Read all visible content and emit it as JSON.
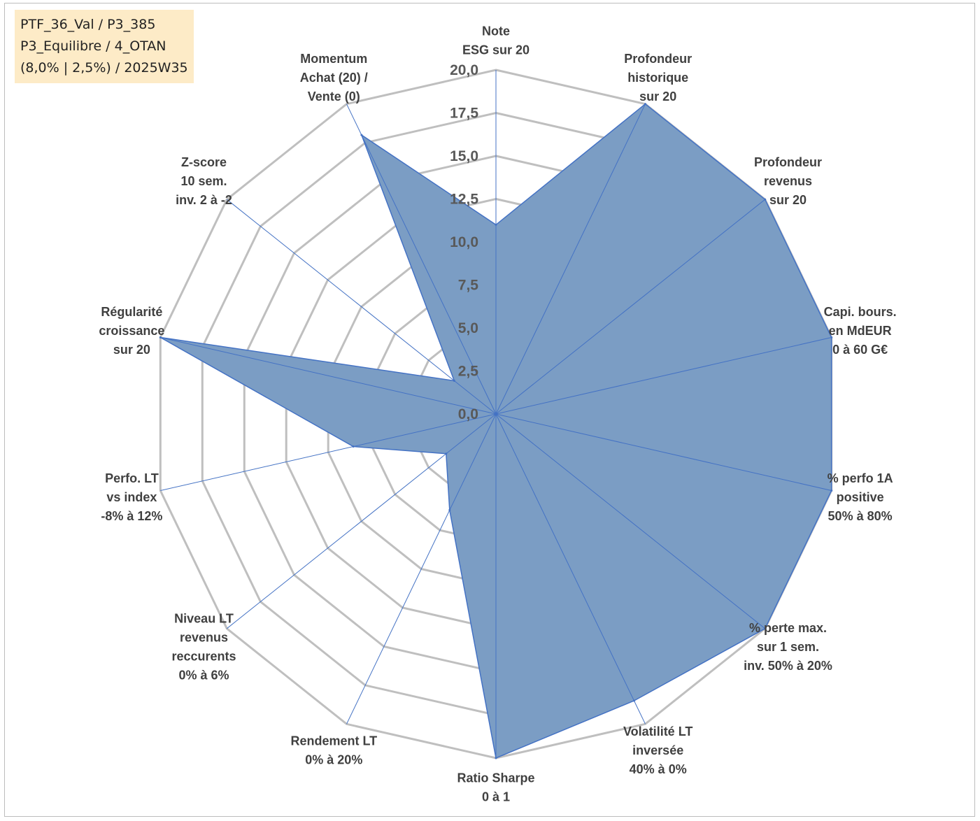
{
  "info": {
    "line1": "PTF_36_Val / P3_385",
    "line2": "P3_Equilibre / 4_OTAN",
    "line3": "(8,0% | 2,5%) / 2025W35"
  },
  "chart_data": {
    "type": "radar",
    "rmin": 0,
    "rmax": 20,
    "ticks": [
      "0,0",
      "2,5",
      "5,0",
      "7,5",
      "10,0",
      "12,5",
      "15,0",
      "17,5",
      "20,0"
    ],
    "axes": [
      {
        "label": [
          "Note",
          "ESG sur 20"
        ],
        "value": 11
      },
      {
        "label": [
          "Profondeur",
          "historique",
          "sur 20"
        ],
        "value": 20
      },
      {
        "label": [
          "Profondeur",
          "revenus",
          "sur 20"
        ],
        "value": 20
      },
      {
        "label": [
          "Capi. bours.",
          "en MdEUR",
          "0 à 60 G€"
        ],
        "value": 20
      },
      {
        "label": [
          "% perfo 1A",
          "positive",
          "50% à 80%"
        ],
        "value": 20
      },
      {
        "label": [
          "% perte max.",
          "sur 1 sem.",
          "inv. 50% à 20%"
        ],
        "value": 20
      },
      {
        "label": [
          "Volatilité LT",
          "inversée",
          "40% à 0%"
        ],
        "value": 18.5
      },
      {
        "label": [
          "Ratio Sharpe",
          "0 à 1"
        ],
        "value": 20
      },
      {
        "label": [
          "Rendement LT",
          "0% à 20%"
        ],
        "value": 6.2
      },
      {
        "label": [
          "Niveau LT",
          "revenus",
          "reccurents",
          "0% à 6%"
        ],
        "value": 3.7
      },
      {
        "label": [
          "Perfo. LT",
          "vs index",
          "-8% à 12%"
        ],
        "value": 8.5
      },
      {
        "label": [
          "Régularité",
          "croissance",
          "sur 20"
        ],
        "value": 20
      },
      {
        "label": [
          "Z-score",
          "10 sem.",
          "inv. 2 à -2"
        ],
        "value": 3.1
      },
      {
        "label": [
          "Momentum",
          "Achat (20) /",
          "Vente (0)"
        ],
        "value": 18
      }
    ],
    "colors": {
      "fill": "#7b9dc4",
      "stroke": "#4472c4",
      "grid": "#bfbfbf",
      "spoke": "#4472c4"
    }
  }
}
